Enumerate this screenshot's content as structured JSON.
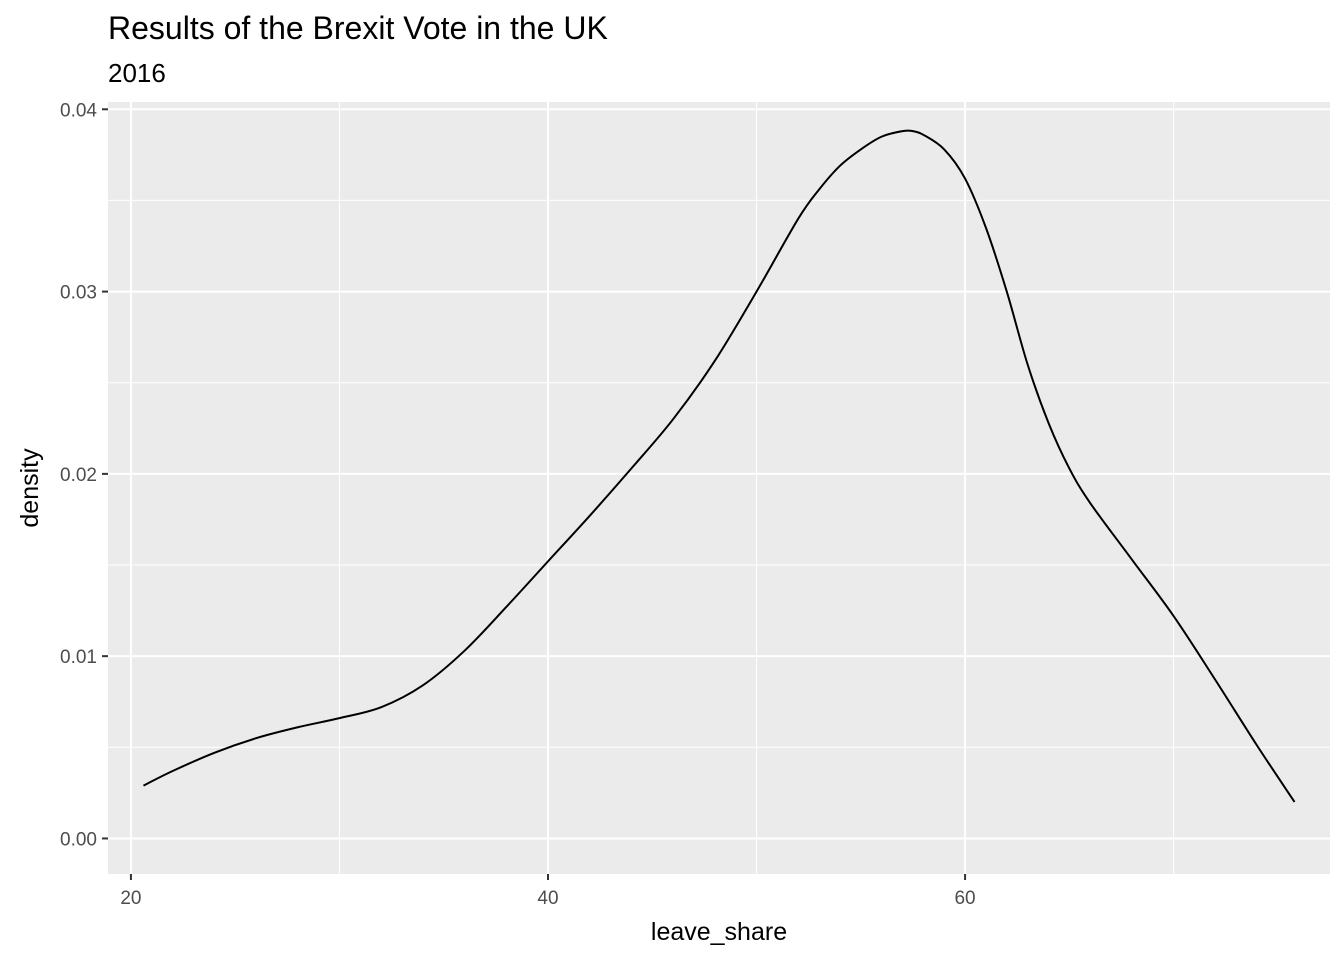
{
  "chart_data": {
    "type": "line",
    "title": "Results of the Brexit Vote in the UK",
    "subtitle": "2016",
    "xlabel": "leave_share",
    "ylabel": "density",
    "xlim": [
      18.9,
      77.5
    ],
    "ylim": [
      -0.00195,
      0.0404
    ],
    "x_ticks": [
      20,
      40,
      60
    ],
    "x_minor_ticks": [
      30,
      50,
      70
    ],
    "y_ticks": [
      0.0,
      0.01,
      0.02,
      0.03,
      0.04
    ],
    "y_tick_labels": [
      "0.00",
      "0.01",
      "0.02",
      "0.03",
      "0.04"
    ],
    "y_minor_ticks": [
      0.005,
      0.015,
      0.025,
      0.035
    ],
    "grid": true,
    "panel_background": "#ebebeb",
    "grid_color": "#ffffff",
    "line_color": "#000000",
    "series": [
      {
        "x": [
          20.6,
          22,
          24,
          26,
          28,
          30,
          32,
          34,
          36,
          38,
          40,
          42,
          44,
          46,
          48,
          50,
          52,
          53,
          54,
          55,
          56,
          57,
          57.5,
          58,
          59,
          60,
          61,
          62,
          63,
          64,
          65,
          66,
          68,
          70,
          72,
          74,
          75.8
        ],
        "y": [
          0.0029,
          0.0037,
          0.0047,
          0.0055,
          0.0061,
          0.0066,
          0.0072,
          0.0084,
          0.0103,
          0.0127,
          0.0152,
          0.0177,
          0.0203,
          0.023,
          0.0262,
          0.03,
          0.034,
          0.0356,
          0.0369,
          0.0378,
          0.0385,
          0.0388,
          0.0388,
          0.0386,
          0.0378,
          0.0362,
          0.0335,
          0.03,
          0.026,
          0.0228,
          0.0203,
          0.0184,
          0.0153,
          0.0122,
          0.0087,
          0.0051,
          0.002
        ]
      }
    ]
  }
}
